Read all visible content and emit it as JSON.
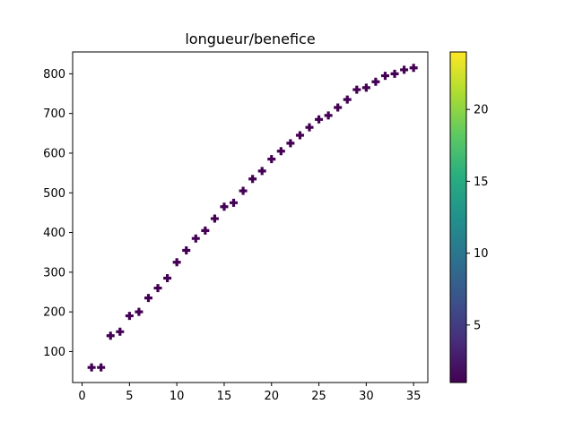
{
  "chart_data": {
    "type": "scatter",
    "title": "longueur/benefice",
    "xlabel": "",
    "ylabel": "",
    "xlim": [
      -1,
      36.5
    ],
    "ylim": [
      22,
      855
    ],
    "xticks": [
      0,
      5,
      10,
      15,
      20,
      25,
      30,
      35
    ],
    "yticks": [
      100,
      200,
      300,
      400,
      500,
      600,
      700,
      800
    ],
    "marker": "plus-filled",
    "marker_color": "#440154",
    "grid": false,
    "series": [
      {
        "x": [
          1,
          2,
          3,
          4,
          5,
          6,
          7,
          8,
          9,
          10,
          11,
          12,
          13,
          14,
          15,
          16,
          17,
          18,
          19,
          20,
          21,
          22,
          23,
          24,
          25,
          26,
          27,
          28,
          29,
          30,
          31,
          32,
          33,
          34,
          35
        ],
        "y": [
          60,
          60,
          140,
          150,
          190,
          200,
          235,
          260,
          285,
          325,
          355,
          385,
          405,
          435,
          465,
          475,
          505,
          535,
          555,
          585,
          605,
          625,
          645,
          665,
          685,
          695,
          715,
          735,
          760,
          765,
          780,
          795,
          800,
          810,
          815
        ]
      }
    ],
    "colorbar": {
      "colormap": "viridis",
      "range": [
        1,
        24
      ],
      "ticks": [
        5,
        10,
        15,
        20
      ]
    }
  }
}
